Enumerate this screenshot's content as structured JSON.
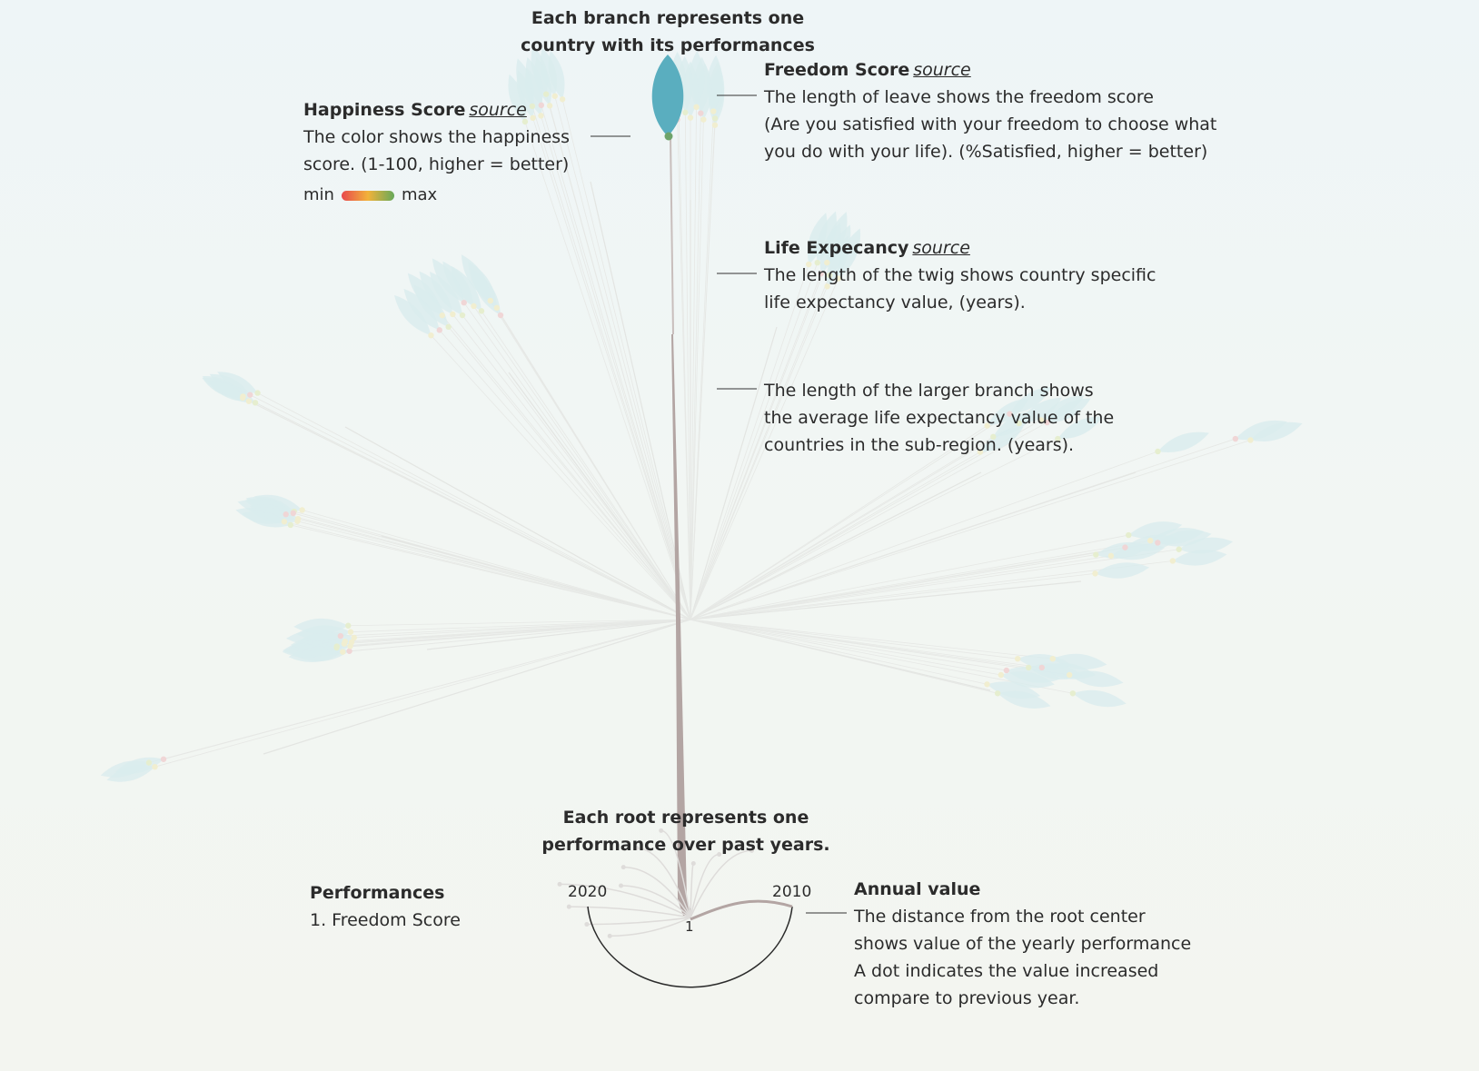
{
  "colors": {
    "leaf_faded": "#d9ecee",
    "leaf_highlight": "#5aaebf",
    "stem": "#b9aaa8",
    "twig_faded": "#dfe2df",
    "root_arc": "#2b2b2b",
    "legend_min": "#e8494d",
    "legend_mid": "#f2b23a",
    "legend_max": "#67a95a"
  },
  "labels": {
    "branch_title": [
      "Each branch represents one",
      "country with its performances"
    ],
    "happiness": {
      "title": "Happiness Score",
      "source": "source",
      "lines": [
        "The color shows the happiness",
        "score. (1-100, higher = better)"
      ],
      "legend_min": "min",
      "legend_max": "max"
    },
    "freedom": {
      "title": "Freedom Score",
      "source": "source",
      "lines": [
        "The length of leave shows the freedom score",
        "(Are you satisfied with your freedom to choose what",
        "you do with your life). (%Satisfied, higher = better)"
      ]
    },
    "life": {
      "title": "Life Expecancy",
      "source": "source",
      "lines": [
        "The length of the twig shows country specific",
        "life expectancy value, (years)."
      ]
    },
    "branch": {
      "lines": [
        "The length of the larger branch shows",
        "the average life expectancy value of the",
        "countries in the sub-region. (years)."
      ]
    },
    "root_title": [
      "Each root represents one",
      "performance over past years."
    ],
    "performances": {
      "title": "Performances",
      "items": [
        "1. Freedom Score"
      ]
    },
    "years": {
      "left": "2020",
      "right": "2010"
    },
    "root_index": "1",
    "annual": {
      "title": "Annual value",
      "lines": [
        "The distance from the root center",
        "shows value of the yearly performance",
        "A dot indicates the value increased",
        "compare to previous year."
      ]
    }
  }
}
